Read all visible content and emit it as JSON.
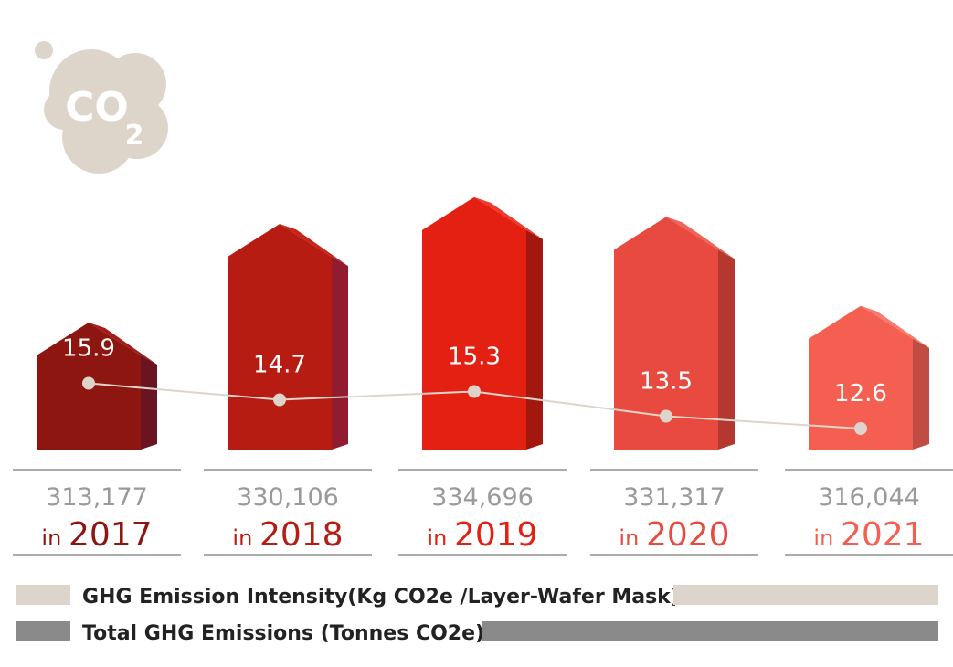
{
  "chart_data": {
    "type": "bar",
    "title": "",
    "categories": [
      "2017",
      "2018",
      "2019",
      "2020",
      "2021"
    ],
    "year_prefix": "in",
    "series": [
      {
        "name": "Total GHG Emissions (Tonnes CO2e)",
        "type": "bar",
        "values": [
          313177,
          330106,
          334696,
          331317,
          316044
        ],
        "labels": [
          "313,177",
          "330,106",
          "334,696",
          "331,317",
          "316,044"
        ]
      },
      {
        "name": "GHG Emission Intensity(Kg CO2e /Layer-Wafer Mask)",
        "type": "line",
        "values": [
          15.9,
          14.7,
          15.3,
          13.5,
          12.6
        ],
        "labels": [
          "15.9",
          "14.7",
          "15.3",
          "13.5",
          "12.6"
        ]
      }
    ],
    "colors": {
      "bars_front": [
        "#8e1610",
        "#b61c12",
        "#e42012",
        "#e84a3f",
        "#f55f52"
      ],
      "bars_side": [
        "#6a1422",
        "#911b31",
        "#a3180e",
        "#b53830",
        "#c04c44"
      ],
      "bars_top": [
        "#a41d16",
        "#c8241a",
        "#ef3a2c",
        "#f06357",
        "#f87a6e"
      ],
      "year_text": [
        "#8e1610",
        "#b61c12",
        "#e42012",
        "#e84a3f",
        "#f55f52"
      ],
      "intensity_line": "#ddd5cb",
      "total_legend": "#8a8a8a",
      "cloud": "#ddd5ca"
    },
    "icon": {
      "name": "co2-cloud-icon",
      "text": "CO",
      "subscript": "2"
    }
  }
}
